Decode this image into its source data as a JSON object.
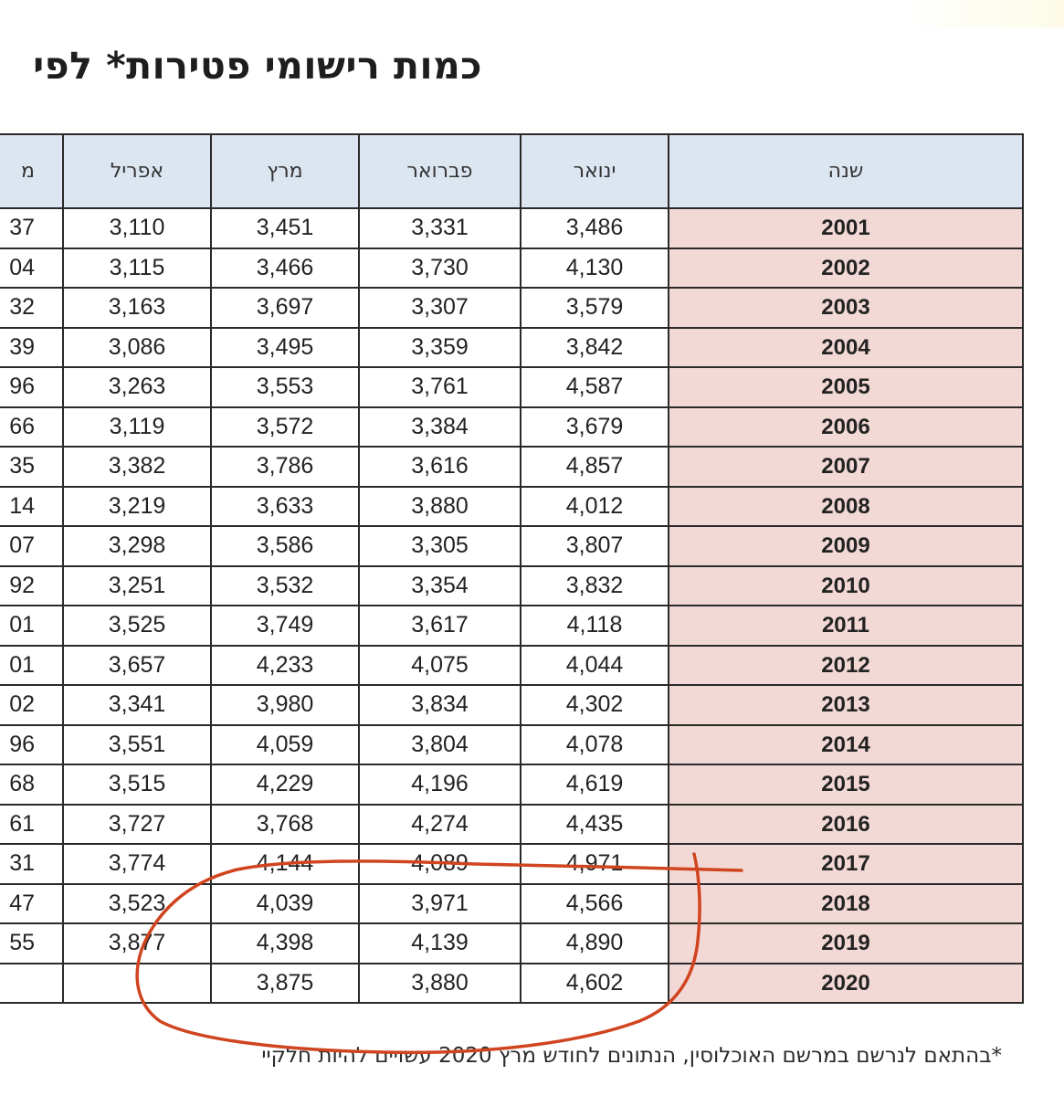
{
  "title": "כמות רישומי פטירות* לפי",
  "headers": {
    "partial": "מ",
    "april": "אפריל",
    "march": "מרץ",
    "february": "פברואר",
    "january": "ינואר",
    "year": "שנה"
  },
  "rows": [
    {
      "partial": "37",
      "april": "3,110",
      "march": "3,451",
      "february": "3,331",
      "january": "3,486",
      "year": "2001"
    },
    {
      "partial": "04",
      "april": "3,115",
      "march": "3,466",
      "february": "3,730",
      "january": "4,130",
      "year": "2002"
    },
    {
      "partial": "32",
      "april": "3,163",
      "march": "3,697",
      "february": "3,307",
      "january": "3,579",
      "year": "2003"
    },
    {
      "partial": "39",
      "april": "3,086",
      "march": "3,495",
      "february": "3,359",
      "january": "3,842",
      "year": "2004"
    },
    {
      "partial": "96",
      "april": "3,263",
      "march": "3,553",
      "february": "3,761",
      "january": "4,587",
      "year": "2005"
    },
    {
      "partial": "66",
      "april": "3,119",
      "march": "3,572",
      "february": "3,384",
      "january": "3,679",
      "year": "2006"
    },
    {
      "partial": "35",
      "april": "3,382",
      "march": "3,786",
      "february": "3,616",
      "january": "4,857",
      "year": "2007"
    },
    {
      "partial": "14",
      "april": "3,219",
      "march": "3,633",
      "february": "3,880",
      "january": "4,012",
      "year": "2008"
    },
    {
      "partial": "07",
      "april": "3,298",
      "march": "3,586",
      "february": "3,305",
      "january": "3,807",
      "year": "2009"
    },
    {
      "partial": "92",
      "april": "3,251",
      "march": "3,532",
      "february": "3,354",
      "january": "3,832",
      "year": "2010"
    },
    {
      "partial": "01",
      "april": "3,525",
      "march": "3,749",
      "february": "3,617",
      "january": "4,118",
      "year": "2011"
    },
    {
      "partial": "01",
      "april": "3,657",
      "march": "4,233",
      "february": "4,075",
      "january": "4,044",
      "year": "2012"
    },
    {
      "partial": "02",
      "april": "3,341",
      "march": "3,980",
      "february": "3,834",
      "january": "4,302",
      "year": "2013"
    },
    {
      "partial": "96",
      "april": "3,551",
      "march": "4,059",
      "february": "3,804",
      "january": "4,078",
      "year": "2014"
    },
    {
      "partial": "68",
      "april": "3,515",
      "march": "4,229",
      "february": "4,196",
      "january": "4,619",
      "year": "2015"
    },
    {
      "partial": "61",
      "april": "3,727",
      "march": "3,768",
      "february": "4,274",
      "january": "4,435",
      "year": "2016"
    },
    {
      "partial": "31",
      "april": "3,774",
      "march": "4,144",
      "february": "4,089",
      "january": "4,971",
      "year": "2017"
    },
    {
      "partial": "47",
      "april": "3,523",
      "march": "4,039",
      "february": "3,971",
      "january": "4,566",
      "year": "2018"
    },
    {
      "partial": "55",
      "april": "3,877",
      "march": "4,398",
      "february": "4,139",
      "january": "4,890",
      "year": "2019"
    },
    {
      "partial": "",
      "april": "",
      "march": "3,875",
      "february": "3,880",
      "january": "4,602",
      "year": "2020"
    }
  ],
  "footnote": "*בהתאם לנרשם במרשם האוכלוסין, הנתונים לחודש מרץ 2020 עשויים להיות חלקיי",
  "colors": {
    "header_bg": "#dce6f1",
    "year_bg": "#f2d9d5",
    "annotation": "#d0441f"
  }
}
